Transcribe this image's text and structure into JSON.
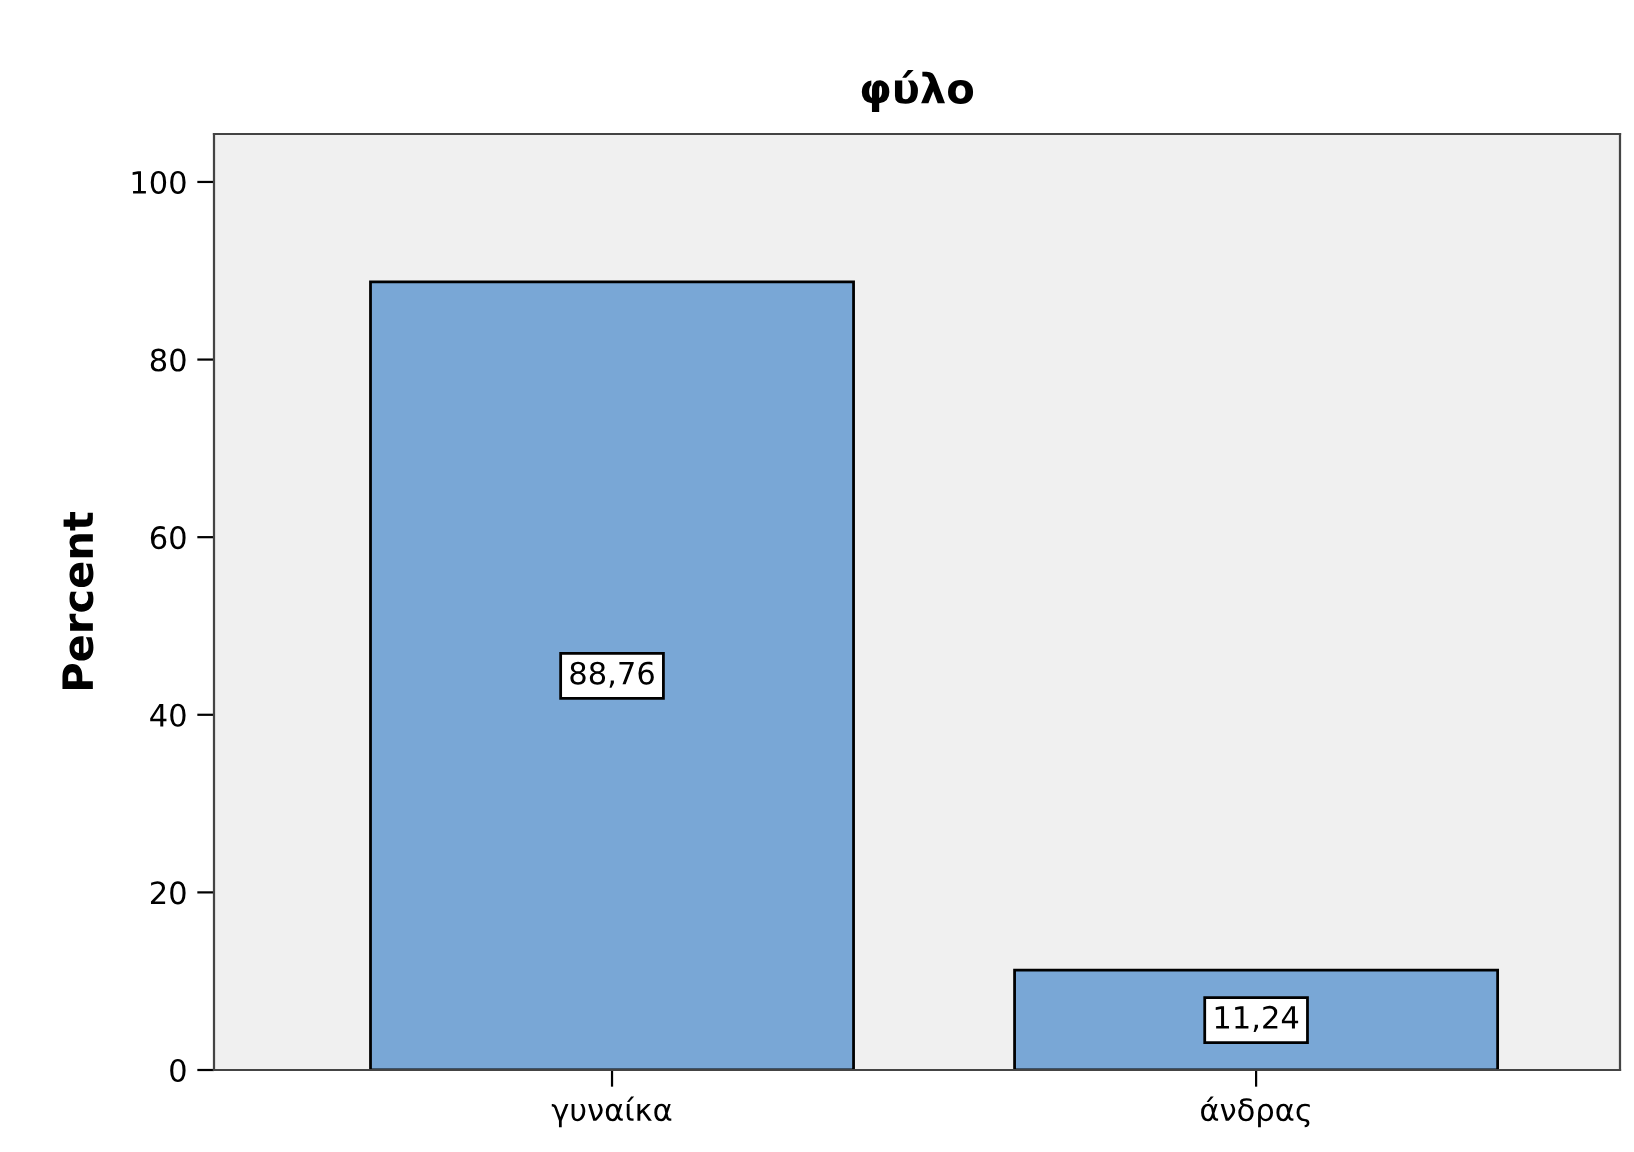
{
  "chart_data": {
    "type": "bar",
    "title": "φύλο",
    "ylabel": "Percent",
    "categories": [
      "γυναίκα",
      "άνδρας"
    ],
    "values": [
      88.76,
      11.24
    ],
    "value_labels": [
      "88,76",
      "11,24"
    ],
    "color": "#79a7d6",
    "ylim": [
      0,
      105.4
    ],
    "yticks": [
      0,
      20,
      40,
      60,
      80,
      100
    ],
    "grid": false,
    "legend": false
  }
}
